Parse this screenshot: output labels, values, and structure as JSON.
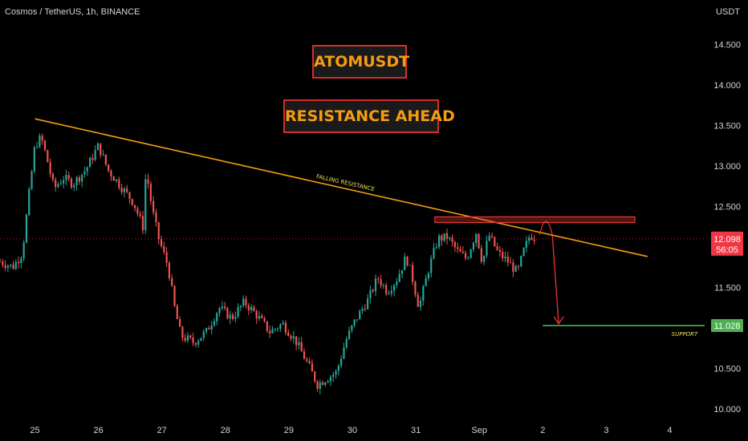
{
  "header": {
    "symbol_title": "Cosmos / TetherUS, 1h, BINANCE",
    "currency": "USDT"
  },
  "annotations": {
    "title": "ATOMUSDT",
    "subtitle": "RESISTANCE AHEAD",
    "trendline_label": "FALLING RESISTANCE",
    "support_label": "SUPPORT"
  },
  "price_tag": {
    "price": "12.098",
    "countdown": "56:05"
  },
  "support_tag": {
    "price": "11.028"
  },
  "colors": {
    "background": "#000000",
    "up_candle": "#26a69a",
    "down_candle": "#ef5350",
    "trendline": "#f39c12",
    "resistance_zone": "#e53935",
    "support_line": "#4caf50",
    "arrow": "#e53935",
    "box_border": "#d32f2f",
    "box_text": "#f39c12",
    "trendline_label": "#f1e05a",
    "support_label": "#f1e05a",
    "price_tag": "#f23645",
    "support_tag": "#4caf50"
  },
  "chart_data": {
    "type": "candlestick",
    "interval": "1h",
    "ylim": [
      9.9,
      14.75
    ],
    "y_ticks": [
      10.0,
      10.5,
      11.0,
      11.5,
      12.0,
      12.5,
      13.0,
      13.5,
      14.0,
      14.5
    ],
    "y_tick_labels": [
      "10.000",
      "10.500",
      "11.000",
      "11.500",
      "12.000",
      "12.500",
      "13.000",
      "13.500",
      "14.000",
      "14.500"
    ],
    "x_tick_labels": [
      "25",
      "26",
      "27",
      "28",
      "29",
      "30",
      "31",
      "Sep",
      "2",
      "3",
      "4"
    ],
    "x_tick_days": [
      0,
      1,
      2,
      3,
      4,
      5,
      6,
      7,
      8,
      9,
      10
    ],
    "xlim_days": [
      -0.55,
      10.55
    ],
    "current_price": 12.098,
    "close_path": [
      [
        -0.55,
        11.82
      ],
      [
        -0.35,
        11.75
      ],
      [
        -0.2,
        11.92
      ],
      [
        -0.1,
        12.6
      ],
      [
        0.0,
        13.25
      ],
      [
        0.1,
        13.35
      ],
      [
        0.2,
        13.05
      ],
      [
        0.3,
        12.72
      ],
      [
        0.45,
        12.85
      ],
      [
        0.6,
        12.78
      ],
      [
        0.8,
        12.95
      ],
      [
        1.0,
        13.25
      ],
      [
        1.15,
        12.95
      ],
      [
        1.35,
        12.75
      ],
      [
        1.55,
        12.55
      ],
      [
        1.7,
        12.25
      ],
      [
        1.75,
        12.95
      ],
      [
        1.85,
        12.45
      ],
      [
        1.95,
        12.1
      ],
      [
        2.1,
        11.75
      ],
      [
        2.2,
        11.25
      ],
      [
        2.3,
        10.9
      ],
      [
        2.5,
        10.82
      ],
      [
        2.7,
        10.95
      ],
      [
        2.9,
        11.25
      ],
      [
        3.1,
        11.12
      ],
      [
        3.3,
        11.32
      ],
      [
        3.5,
        11.15
      ],
      [
        3.7,
        10.95
      ],
      [
        3.9,
        11.05
      ],
      [
        4.1,
        10.85
      ],
      [
        4.3,
        10.55
      ],
      [
        4.45,
        10.3
      ],
      [
        4.6,
        10.38
      ],
      [
        4.75,
        10.45
      ],
      [
        4.9,
        10.85
      ],
      [
        5.05,
        11.1
      ],
      [
        5.25,
        11.35
      ],
      [
        5.4,
        11.62
      ],
      [
        5.55,
        11.45
      ],
      [
        5.7,
        11.6
      ],
      [
        5.85,
        11.88
      ],
      [
        5.95,
        11.6
      ],
      [
        6.05,
        11.25
      ],
      [
        6.2,
        11.72
      ],
      [
        6.35,
        12.1
      ],
      [
        6.5,
        12.12
      ],
      [
        6.65,
        11.95
      ],
      [
        6.8,
        11.85
      ],
      [
        6.95,
        12.18
      ],
      [
        7.05,
        11.8
      ],
      [
        7.15,
        12.15
      ],
      [
        7.3,
        11.92
      ],
      [
        7.45,
        11.82
      ],
      [
        7.6,
        11.68
      ],
      [
        7.7,
        11.95
      ],
      [
        7.8,
        12.15
      ],
      [
        7.9,
        12.1
      ]
    ],
    "trendline": {
      "from": [
        0.0,
        13.58
      ],
      "to": [
        9.65,
        11.88
      ]
    },
    "resistance_zone": {
      "x_days": [
        6.3,
        9.45
      ],
      "y": [
        12.3,
        12.37
      ]
    },
    "support_level": {
      "x_days": [
        8.0,
        10.55
      ],
      "y": 11.028
    },
    "arrow_path": [
      [
        7.95,
        12.15
      ],
      [
        8.05,
        12.32
      ],
      [
        8.15,
        12.15
      ],
      [
        8.25,
        11.05
      ]
    ]
  }
}
